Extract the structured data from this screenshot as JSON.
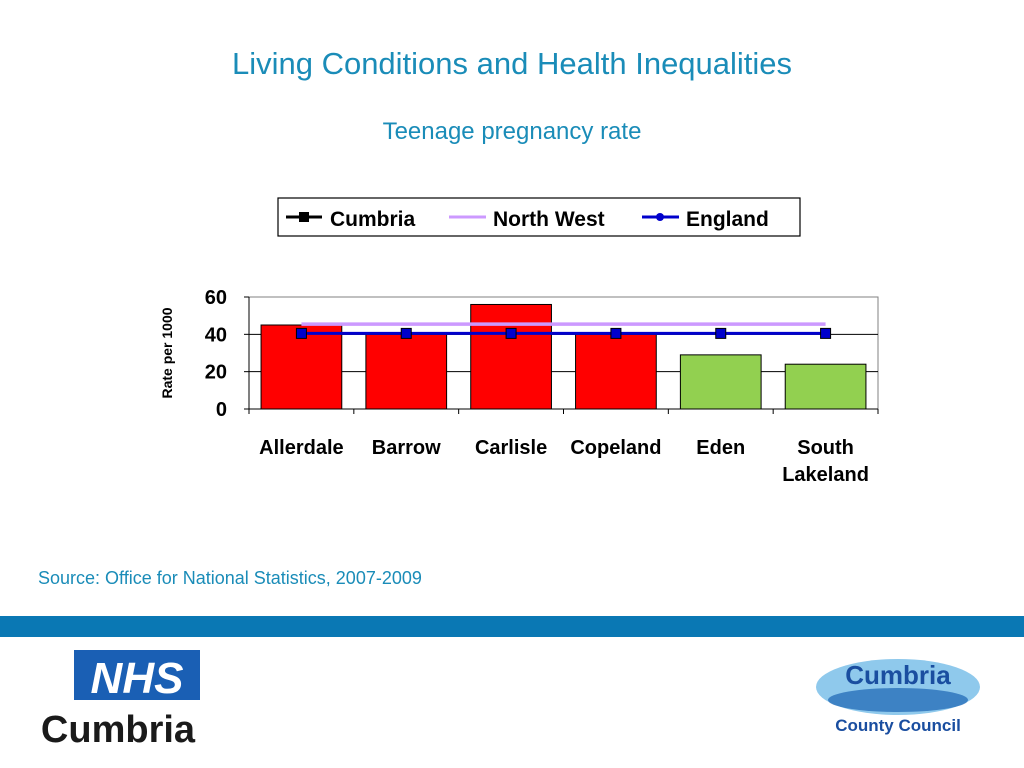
{
  "slide": {
    "title": "Living Conditions and Health Inequalities",
    "subtitle": "Teenage pregnancy rate",
    "source": "Source: Office for National Statistics, 2007-2009"
  },
  "logos": {
    "nhs_badge": "NHS",
    "nhs_name": "Cumbria",
    "council_name": "Cumbria",
    "council_sub": "County Council"
  },
  "chart_data": {
    "type": "bar",
    "ylabel": "Rate per 1000",
    "xlabel": "",
    "ylim": [
      0,
      60
    ],
    "yticks": [
      0,
      20,
      40,
      60
    ],
    "grid": "horizontal",
    "legend_position": "top",
    "categories": [
      [
        "Allerdale"
      ],
      [
        "Barrow"
      ],
      [
        "Carlisle"
      ],
      [
        "Copeland"
      ],
      [
        "Eden"
      ],
      [
        "South",
        "Lakeland"
      ]
    ],
    "series": [
      {
        "name": "Cumbria",
        "kind": "bar",
        "values": [
          45,
          40,
          56,
          40,
          29,
          24
        ],
        "colors": [
          "#ff0000",
          "#ff0000",
          "#ff0000",
          "#ff0000",
          "#92d050",
          "#92d050"
        ]
      },
      {
        "name": "North West",
        "kind": "line",
        "values": [
          45.5,
          45.5,
          45.5,
          45.5,
          45.5,
          45.5
        ],
        "color": "#cc99ff"
      },
      {
        "name": "England",
        "kind": "line",
        "values": [
          40.5,
          40.5,
          40.5,
          40.5,
          40.5,
          40.5
        ],
        "color": "#0000cc"
      }
    ]
  }
}
